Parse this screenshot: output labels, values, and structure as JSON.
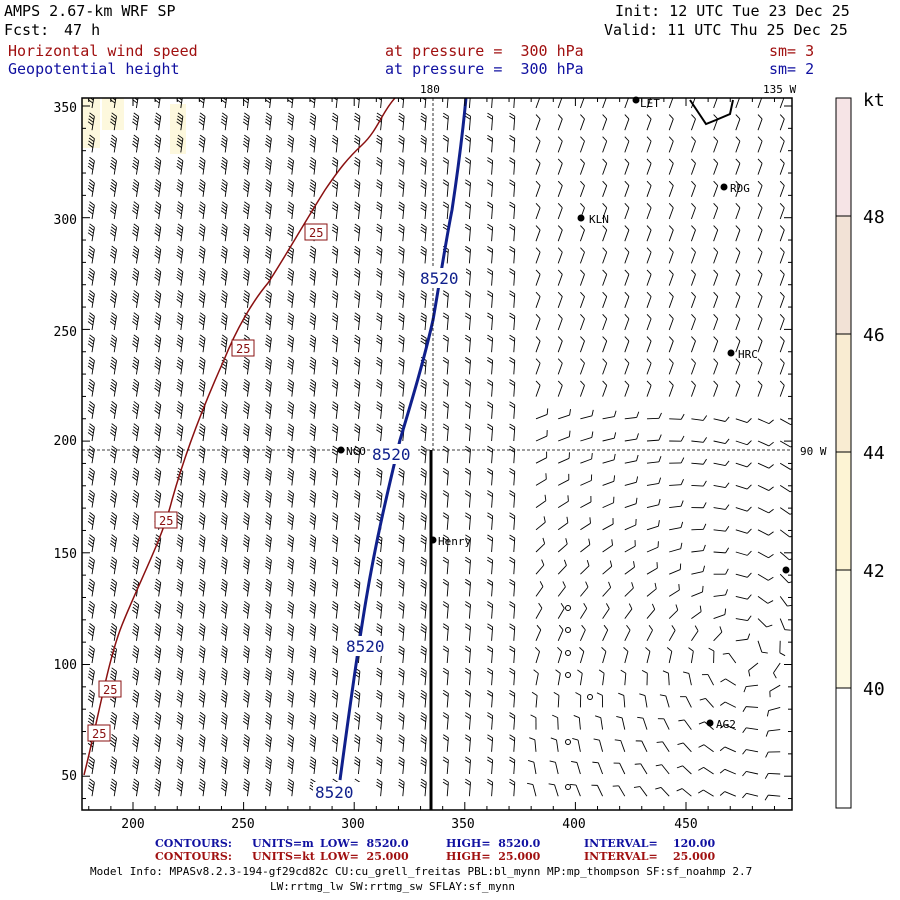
{
  "header": {
    "model": "AMPS 2.67-km WRF SP",
    "fcst_label": "Fcst:",
    "fcst_value": "47 h",
    "init": "Init: 12 UTC Tue 23 Dec 25",
    "valid": "Valid: 11 UTC Thu 25 Dec 25",
    "field1": "Horizontal wind speed",
    "field2": "Geopotential height",
    "level1": "at pressure =  300 hPa",
    "level2": "at pressure =  300 hPa",
    "sm1": "sm= 3",
    "sm2": "sm= 2"
  },
  "map": {
    "x_ticks": [
      "200",
      "250",
      "300",
      "350",
      "400",
      "450"
    ],
    "y_ticks": [
      "350",
      "300",
      "250",
      "200",
      "150",
      "100",
      "50"
    ],
    "meridian_labels": {
      "top": "180",
      "top_right": "135 W",
      "right": "90 W"
    },
    "stations": [
      "LET",
      "RDG",
      "KLN",
      "HRC",
      "NCO",
      "Henry",
      "AG2"
    ],
    "height_contour_label": "8520",
    "speed_contour_label": "25",
    "colors": {
      "height_contour": "#10208c",
      "speed_contour": "#8a1010",
      "shade_light": "#fdf9dc",
      "shade_mid": "#f8edcc"
    }
  },
  "colorbar": {
    "unit": "kt",
    "ticks": [
      "48",
      "46",
      "44",
      "42",
      "40"
    ],
    "colors": [
      "#f6e4e6",
      "#f2e2d6",
      "#fdf2d0",
      "#fdf8dd",
      "#fffff2",
      "#ffffff"
    ]
  },
  "footer": {
    "line1": {
      "label": "CONTOURS:",
      "units": "UNITS=m",
      "low": "LOW=  8520.0",
      "high": "HIGH=  8520.0",
      "interval": "INTERVAL=    120.00"
    },
    "line2": {
      "label": "CONTOURS:",
      "units": "UNITS=kt",
      "low": "LOW=  25.000",
      "high": "HIGH=  25.000",
      "interval": "INTERVAL=    25.000"
    },
    "model_info": "Model Info: MPASv8.2.3-194-gf29cd82c CU:cu_grell_freitas PBL:bl_mynn MP:mp_thompson SF:sf_noahmp 2.7",
    "model_info2": "LW:rrtmg_lw SW:rrtmg_sw SFLAY:sf_mynn"
  }
}
